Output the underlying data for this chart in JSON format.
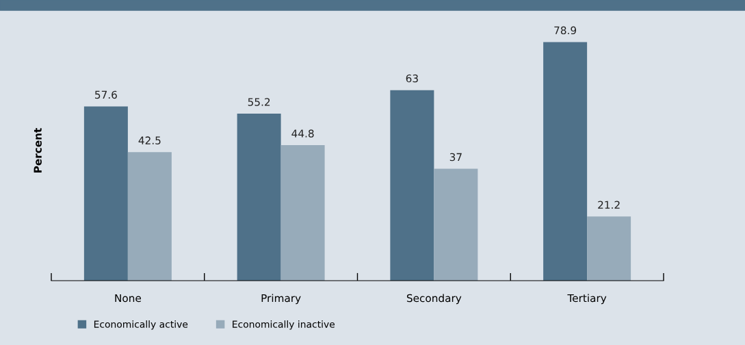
{
  "chart_data": {
    "type": "bar",
    "ylabel": "Percent",
    "categories": [
      "None",
      "Primary",
      "Secondary",
      "Tertiary"
    ],
    "series": [
      {
        "name": "Economically active",
        "color": "#4f7189",
        "values": [
          57.6,
          55.2,
          63,
          78.9
        ]
      },
      {
        "name": "Economically inactive",
        "color": "#97abba",
        "values": [
          42.5,
          44.8,
          37,
          21.2
        ]
      }
    ],
    "tick_labels": "x",
    "data_labels": true,
    "legend": "bottom left",
    "grid": false
  }
}
